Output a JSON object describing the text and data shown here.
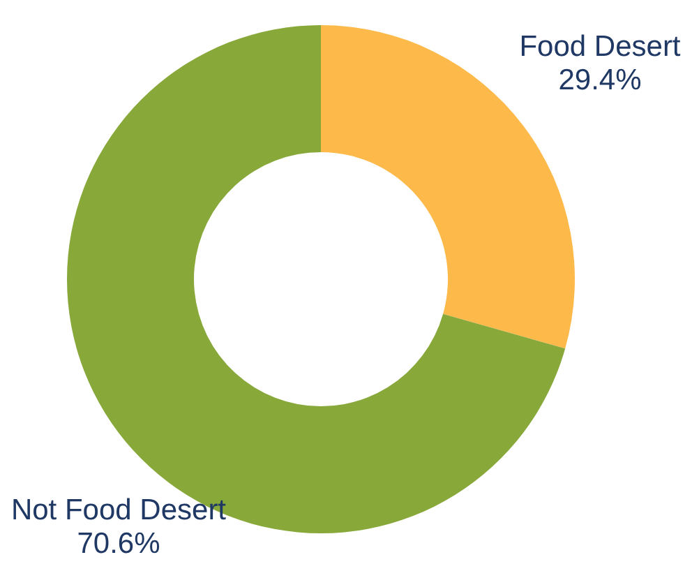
{
  "chart_data": {
    "type": "donut",
    "categories": [
      "Food Desert",
      "Not Food Desert"
    ],
    "values": [
      29.4,
      70.6
    ],
    "colors": [
      "#fdb94a",
      "#88a83a"
    ],
    "value_labels": [
      "29.4%",
      "70.6%"
    ]
  }
}
